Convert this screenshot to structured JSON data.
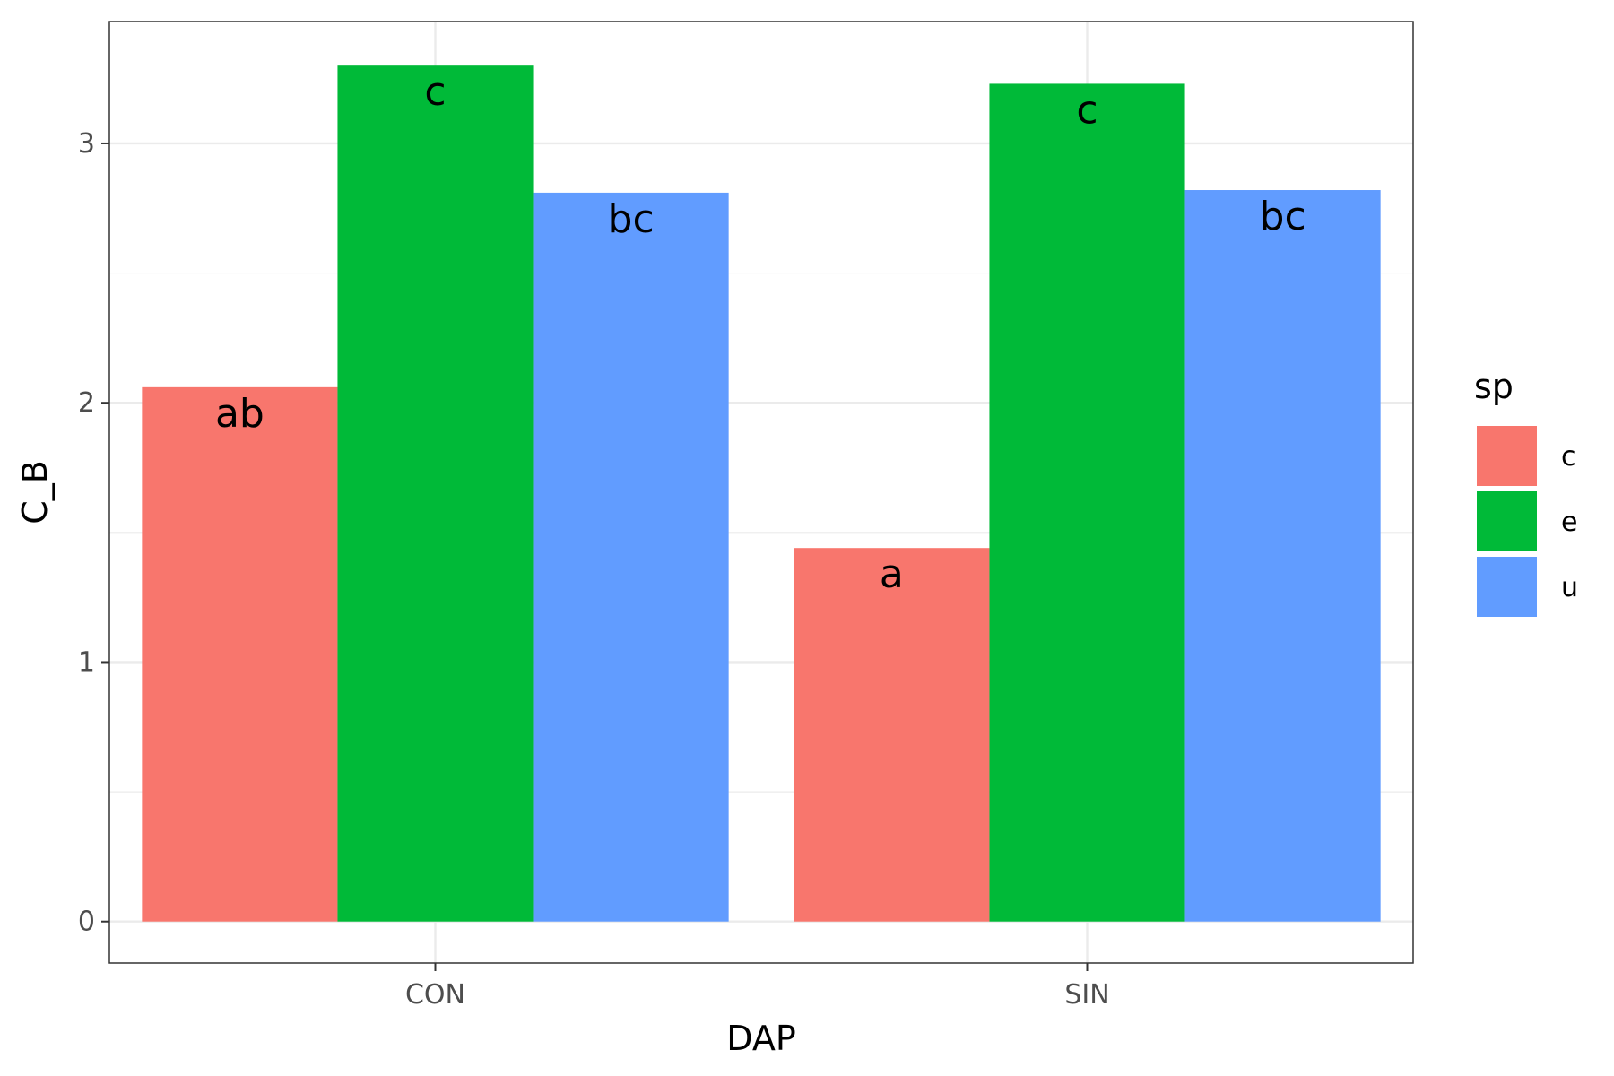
{
  "chart_data": {
    "type": "bar",
    "xlabel": "DAP",
    "ylabel": "C_B",
    "categories": [
      "CON",
      "SIN"
    ],
    "series": [
      {
        "name": "c",
        "color": "#F8766D",
        "values": [
          2.06,
          1.44
        ],
        "labels": [
          "ab",
          "a"
        ]
      },
      {
        "name": "e",
        "color": "#00BA38",
        "values": [
          3.3,
          3.23
        ],
        "labels": [
          "c",
          "c"
        ]
      },
      {
        "name": "u",
        "color": "#619CFF",
        "values": [
          2.81,
          2.82
        ],
        "labels": [
          "bc",
          "bc"
        ]
      }
    ],
    "ylim": [
      -0.16,
      3.47
    ],
    "yticks": [
      0,
      1,
      2,
      3
    ],
    "legend": {
      "title": "sp",
      "position": "right"
    },
    "grid": true,
    "theme": "bw"
  }
}
